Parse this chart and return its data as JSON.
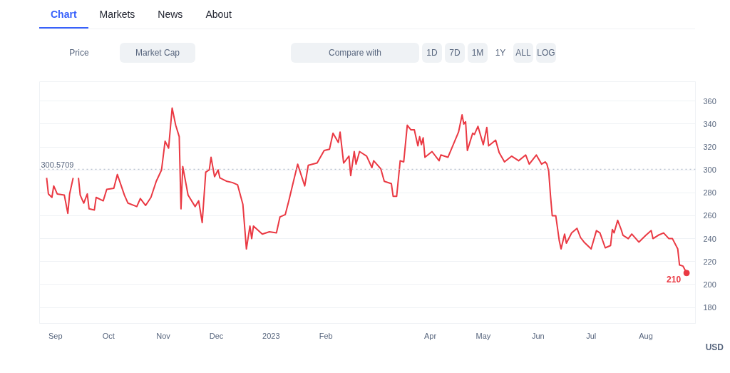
{
  "chart_data": {
    "type": "line",
    "annotations": [
      "Chart",
      "Markets",
      "News",
      "About",
      "Price",
      "Market Cap",
      "Compare with",
      "1D",
      "7D",
      "1M",
      "1Y",
      "ALL",
      "LOG",
      {
        "text": "210",
        "x": "2023-08-24",
        "y": 210
      }
    ],
    "ylabel": "USD",
    "x": [
      "2022-08-27",
      "2022-08-28",
      "2022-08-30",
      "2022-08-31",
      "2022-09-02",
      "2022-09-06",
      "2022-09-08",
      "2022-09-09",
      "2022-09-11",
      "2022-09-12",
      "2022-09-14",
      "2022-09-15",
      "2022-09-17",
      "2022-09-19",
      "2022-09-20",
      "2022-09-23",
      "2022-09-24",
      "2022-09-28",
      "2022-09-30",
      "2022-10-04",
      "2022-10-06",
      "2022-10-10",
      "2022-10-12",
      "2022-10-17",
      "2022-10-19",
      "2022-10-22",
      "2022-10-25",
      "2022-10-28",
      "2022-10-31",
      "2022-11-02",
      "2022-11-04",
      "2022-11-06",
      "2022-11-08",
      "2022-11-10",
      "2022-11-11",
      "2022-11-12",
      "2022-11-15",
      "2022-11-19",
      "2022-11-21",
      "2022-11-23",
      "2022-11-25",
      "2022-11-27",
      "2022-11-28",
      "2022-11-30",
      "2022-12-02",
      "2022-12-03",
      "2022-12-07",
      "2022-12-10",
      "2022-12-13",
      "2022-12-16",
      "2022-12-18",
      "2022-12-20",
      "2022-12-21",
      "2022-12-22",
      "2022-12-27",
      "2022-12-31",
      "2023-01-04",
      "2023-01-06",
      "2023-01-09",
      "2023-01-11",
      "2023-01-13",
      "2023-01-16",
      "2023-01-20",
      "2023-01-22",
      "2023-01-27",
      "2023-01-31",
      "2023-02-03",
      "2023-02-05",
      "2023-02-08",
      "2023-02-09",
      "2023-02-11",
      "2023-02-14",
      "2023-02-15",
      "2023-02-17",
      "2023-02-18",
      "2023-02-20",
      "2023-02-24",
      "2023-02-27",
      "2023-02-28",
      "2023-03-04",
      "2023-03-06",
      "2023-03-10",
      "2023-03-11",
      "2023-03-13",
      "2023-03-15",
      "2023-03-17",
      "2023-03-19",
      "2023-03-21",
      "2023-03-23",
      "2023-03-25",
      "2023-03-26",
      "2023-03-27",
      "2023-03-28",
      "2023-03-29",
      "2023-04-02",
      "2023-04-06",
      "2023-04-07",
      "2023-04-11",
      "2023-04-14",
      "2023-04-17",
      "2023-04-19",
      "2023-04-20",
      "2023-04-21",
      "2023-04-22",
      "2023-04-25",
      "2023-04-26",
      "2023-04-28",
      "2023-05-01",
      "2023-05-03",
      "2023-05-04",
      "2023-05-08",
      "2023-05-10",
      "2023-05-13",
      "2023-05-17",
      "2023-05-21",
      "2023-05-25",
      "2023-05-27",
      "2023-05-31",
      "2023-06-03",
      "2023-06-05",
      "2023-06-06",
      "2023-06-07",
      "2023-06-08",
      "2023-06-09",
      "2023-06-11",
      "2023-06-13",
      "2023-06-14",
      "2023-06-16",
      "2023-06-17",
      "2023-06-20",
      "2023-06-23",
      "2023-06-25",
      "2023-06-27",
      "2023-07-01",
      "2023-07-04",
      "2023-07-06",
      "2023-07-09",
      "2023-07-12",
      "2023-07-13",
      "2023-07-14",
      "2023-07-16",
      "2023-07-18",
      "2023-07-19",
      "2023-07-22",
      "2023-07-24",
      "2023-07-28",
      "2023-08-01",
      "2023-08-04",
      "2023-08-05",
      "2023-08-08",
      "2023-08-11",
      "2023-08-14",
      "2023-08-16",
      "2023-08-19",
      "2023-08-20",
      "2023-08-22",
      "2023-08-24"
    ],
    "series": [
      {
        "color": "#ea3943",
        "values": [
          293,
          279,
          276,
          286,
          279,
          278,
          262,
          279,
          293,
          null,
          293,
          278,
          271,
          279,
          266,
          265,
          276,
          273,
          283,
          284,
          296,
          278,
          271,
          268,
          275,
          269,
          276,
          290,
          300,
          325,
          319,
          354,
          339,
          329,
          266,
          303,
          278,
          268,
          273,
          254,
          298,
          300,
          311,
          294,
          300,
          293,
          290,
          289,
          287,
          270,
          231,
          251,
          240,
          251,
          244,
          246,
          245,
          259,
          261,
          273,
          286,
          305,
          286,
          304,
          306,
          317,
          318,
          332,
          324,
          333,
          306,
          312,
          295,
          316,
          305,
          316,
          312,
          302,
          308,
          301,
          290,
          288,
          277,
          277,
          308,
          307,
          339,
          335,
          335,
          321,
          329,
          322,
          328,
          311,
          316,
          308,
          313,
          311,
          322,
          333,
          348,
          340,
          342,
          317,
          332,
          331,
          338,
          322,
          337,
          321,
          326,
          315,
          307,
          312,
          308,
          313,
          305,
          313,
          305,
          307,
          305,
          299,
          278,
          260,
          260,
          238,
          231,
          244,
          236,
          245,
          249,
          241,
          237,
          231,
          247,
          245,
          232,
          234,
          248,
          245,
          256,
          248,
          243,
          240,
          244,
          237,
          243,
          247,
          240,
          243,
          245,
          240,
          240,
          231,
          217,
          216,
          210
        ]
      }
    ],
    "ylim": [
      166,
      377
    ],
    "yticks": [
      180,
      200,
      220,
      240,
      260,
      280,
      300,
      320,
      340,
      360
    ],
    "xlim": [
      "2022-08-23",
      "2023-08-29"
    ],
    "xticks": [
      {
        "value": "2022-09-01",
        "label": "Sep"
      },
      {
        "value": "2022-10-01",
        "label": "Oct"
      },
      {
        "value": "2022-11-01",
        "label": "Nov"
      },
      {
        "value": "2022-12-01",
        "label": "Dec"
      },
      {
        "value": "2023-01-01",
        "label": "2023"
      },
      {
        "value": "2023-02-01",
        "label": "Feb"
      },
      {
        "value": "2023-04-01",
        "label": "Apr"
      },
      {
        "value": "2023-05-01",
        "label": "May"
      },
      {
        "value": "2023-06-01",
        "label": "Jun"
      },
      {
        "value": "2023-07-01",
        "label": "Jul"
      },
      {
        "value": "2023-08-01",
        "label": "Aug"
      }
    ],
    "ref_lines": [
      {
        "axis": "y",
        "value": 300.5709,
        "label": "300.5709",
        "color": "#a6b0c3",
        "line_style": "dotted"
      }
    ],
    "grid": "y",
    "marker": "none",
    "line_style": "solid"
  }
}
